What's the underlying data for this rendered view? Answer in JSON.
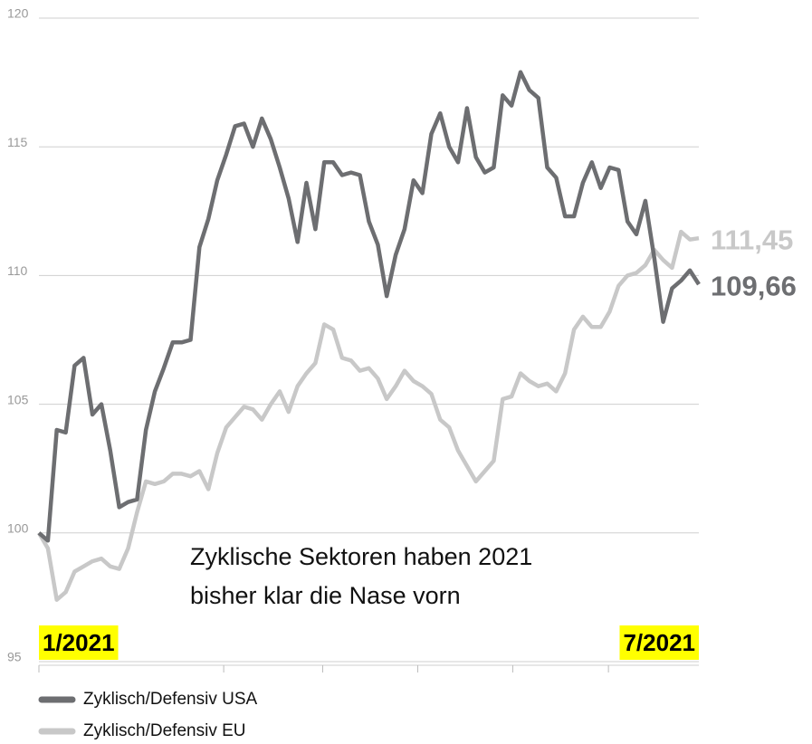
{
  "chart_data": {
    "type": "line",
    "annotation": [
      "Zyklische Sektoren haben 2021",
      "bisher klar die Nase vorn"
    ],
    "categories": [
      "1/2021",
      null,
      null,
      null,
      null,
      null,
      null,
      null,
      null,
      null,
      null,
      null,
      null,
      null,
      null,
      null,
      null,
      null,
      null,
      null,
      null,
      null,
      null,
      null,
      null,
      null,
      null,
      null,
      null,
      null,
      null,
      null,
      null,
      null,
      null,
      null,
      null,
      null,
      null,
      null,
      null,
      null,
      null,
      null,
      null,
      null,
      null,
      null,
      null,
      null,
      null,
      null,
      null,
      null,
      null,
      null,
      null,
      null,
      null,
      null,
      null,
      null,
      null,
      null,
      null,
      null,
      null,
      null,
      null,
      null,
      null,
      null,
      null,
      null,
      "7/2021"
    ],
    "series": [
      {
        "name": "Zyklisch/Defensiv USA",
        "color": "#6d6e71",
        "end_label": "109,66",
        "values": [
          100.0,
          99.7,
          104.0,
          103.9,
          106.5,
          106.8,
          104.6,
          105.0,
          103.2,
          101.0,
          101.2,
          101.3,
          104.0,
          105.5,
          106.4,
          107.4,
          107.4,
          107.5,
          111.1,
          112.2,
          113.7,
          114.7,
          115.8,
          115.9,
          115.0,
          116.1,
          115.3,
          114.2,
          113.0,
          111.3,
          113.6,
          111.8,
          114.4,
          114.4,
          113.9,
          114.0,
          113.9,
          112.1,
          111.2,
          109.2,
          110.8,
          111.8,
          113.7,
          113.2,
          115.5,
          116.3,
          115.0,
          114.4,
          116.5,
          114.6,
          114.0,
          114.2,
          117.0,
          116.6,
          117.9,
          117.2,
          116.9,
          114.2,
          113.8,
          112.3,
          112.3,
          113.6,
          114.4,
          113.4,
          114.2,
          114.1,
          112.1,
          111.6,
          112.9,
          110.7,
          108.2,
          109.5,
          109.8,
          110.2,
          109.66
        ]
      },
      {
        "name": "Zyklisch/Defensiv EU",
        "color": "#c8c8c8",
        "end_label": "111,45",
        "values": [
          100.0,
          99.4,
          97.4,
          97.7,
          98.5,
          98.7,
          98.9,
          99.0,
          98.7,
          98.6,
          99.4,
          100.8,
          102.0,
          101.9,
          102.0,
          102.3,
          102.3,
          102.2,
          102.4,
          101.7,
          103.1,
          104.1,
          104.5,
          104.9,
          104.8,
          104.4,
          105.0,
          105.5,
          104.7,
          105.7,
          106.2,
          106.6,
          108.1,
          107.9,
          106.8,
          106.7,
          106.3,
          106.4,
          106.0,
          105.2,
          105.7,
          106.3,
          105.9,
          105.7,
          105.4,
          104.4,
          104.1,
          103.2,
          102.6,
          102.0,
          102.4,
          102.8,
          105.2,
          105.3,
          106.2,
          105.9,
          105.7,
          105.8,
          105.5,
          106.2,
          107.9,
          108.4,
          108.0,
          108.0,
          108.6,
          109.6,
          110.0,
          110.1,
          110.4,
          111.0,
          110.6,
          110.3,
          111.7,
          111.4,
          111.45
        ]
      }
    ],
    "ylim": [
      95,
      120
    ],
    "yticks": [
      95,
      100,
      105,
      110,
      115,
      120
    ],
    "grid": true
  }
}
